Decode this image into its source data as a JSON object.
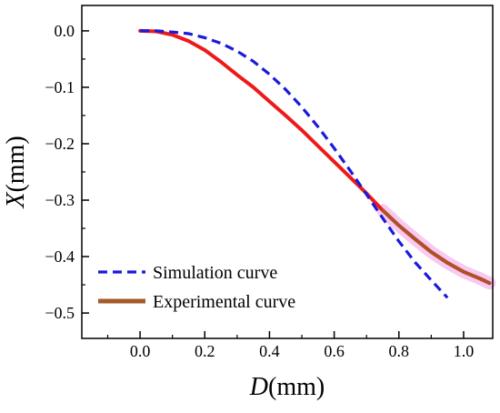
{
  "chart_data": {
    "type": "line",
    "title": "",
    "xlabel_italic": "D",
    "xlabel_unit": "(mm)",
    "ylabel_italic": "X",
    "ylabel_unit": "(mm)",
    "xlim": [
      -0.18,
      1.09
    ],
    "ylim": [
      -0.545,
      0.045
    ],
    "x_ticks": [
      {
        "value": 0.0,
        "label": "0.0"
      },
      {
        "value": 0.2,
        "label": "0.2"
      },
      {
        "value": 0.4,
        "label": "0.4"
      },
      {
        "value": 0.6,
        "label": "0.6"
      },
      {
        "value": 0.8,
        "label": "0.8"
      },
      {
        "value": 1.0,
        "label": "1.0"
      }
    ],
    "y_ticks": [
      {
        "value": 0.0,
        "label": "0.0"
      },
      {
        "value": -0.1,
        "label": "−0.1"
      },
      {
        "value": -0.2,
        "label": "−0.2"
      },
      {
        "value": -0.3,
        "label": "−0.3"
      },
      {
        "value": -0.4,
        "label": "−0.4"
      },
      {
        "value": -0.5,
        "label": "−0.5"
      }
    ],
    "x_minor_ticks": [
      -0.1,
      0.1,
      0.3,
      0.5,
      0.7,
      0.9
    ],
    "y_minor_ticks": [
      -0.05,
      -0.15,
      -0.25,
      -0.35,
      -0.45
    ],
    "grid": false,
    "legend_position": "bottom-left",
    "series": [
      {
        "name": "Simulation curve",
        "color": "#1a1adc",
        "style": "dashed",
        "points": [
          {
            "x": 0.0,
            "y": 0.0
          },
          {
            "x": 0.05,
            "y": 0.0
          },
          {
            "x": 0.1,
            "y": -0.002
          },
          {
            "x": 0.15,
            "y": -0.005
          },
          {
            "x": 0.2,
            "y": -0.012
          },
          {
            "x": 0.25,
            "y": -0.022
          },
          {
            "x": 0.3,
            "y": -0.036
          },
          {
            "x": 0.35,
            "y": -0.054
          },
          {
            "x": 0.4,
            "y": -0.077
          },
          {
            "x": 0.45,
            "y": -0.104
          },
          {
            "x": 0.5,
            "y": -0.135
          },
          {
            "x": 0.55,
            "y": -0.17
          },
          {
            "x": 0.6,
            "y": -0.208
          },
          {
            "x": 0.65,
            "y": -0.248
          },
          {
            "x": 0.7,
            "y": -0.29
          },
          {
            "x": 0.75,
            "y": -0.332
          },
          {
            "x": 0.8,
            "y": -0.373
          },
          {
            "x": 0.85,
            "y": -0.41
          },
          {
            "x": 0.9,
            "y": -0.442
          },
          {
            "x": 0.95,
            "y": -0.473
          }
        ]
      },
      {
        "name": "Experimental curve",
        "color": "#ee1a1a",
        "overlap_color": "#a55a2a",
        "highlight_color": "#f4b8ec",
        "style": "solid",
        "points": [
          {
            "x": 0.0,
            "y": 0.0
          },
          {
            "x": 0.05,
            "y": -0.001
          },
          {
            "x": 0.1,
            "y": -0.007
          },
          {
            "x": 0.15,
            "y": -0.018
          },
          {
            "x": 0.2,
            "y": -0.034
          },
          {
            "x": 0.25,
            "y": -0.055
          },
          {
            "x": 0.3,
            "y": -0.078
          },
          {
            "x": 0.35,
            "y": -0.1
          },
          {
            "x": 0.4,
            "y": -0.125
          },
          {
            "x": 0.45,
            "y": -0.15
          },
          {
            "x": 0.5,
            "y": -0.176
          },
          {
            "x": 0.55,
            "y": -0.204
          },
          {
            "x": 0.6,
            "y": -0.232
          },
          {
            "x": 0.65,
            "y": -0.26
          },
          {
            "x": 0.7,
            "y": -0.288
          },
          {
            "x": 0.75,
            "y": -0.318
          },
          {
            "x": 0.8,
            "y": -0.345
          },
          {
            "x": 0.85,
            "y": -0.369
          },
          {
            "x": 0.9,
            "y": -0.392
          },
          {
            "x": 0.95,
            "y": -0.411
          },
          {
            "x": 1.0,
            "y": -0.427
          },
          {
            "x": 1.05,
            "y": -0.439
          },
          {
            "x": 1.08,
            "y": -0.447
          }
        ]
      }
    ]
  }
}
